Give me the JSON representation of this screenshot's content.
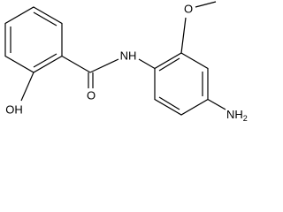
{
  "labels": {
    "amide_nh": "NH",
    "carbonyl_o": "O",
    "hydroxyl": "OH",
    "methoxy_o": "O",
    "amine": "NH",
    "amine_subscript": "2"
  }
}
